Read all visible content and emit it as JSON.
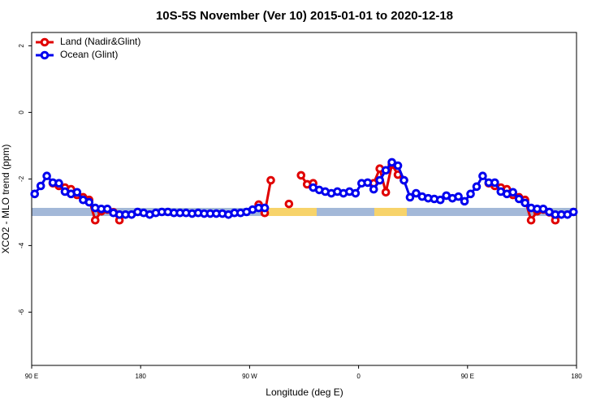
{
  "chart_data": {
    "type": "line",
    "title": "10S-5S November (Ver 10)   2015-01-01 to 2020-12-18",
    "x_label": "Longitude (deg E)",
    "y_label": "XCO2 - MLO trend (ppm)",
    "xlim": [
      90,
      540
    ],
    "xticks": [
      {
        "value": 90,
        "label": "90 E"
      },
      180,
      {
        "value": 270,
        "label": "90 W"
      },
      {
        "value": 360,
        "label": "0"
      },
      {
        "value": 450,
        "label": "90 E"
      },
      {
        "value": 540,
        "label": "180"
      }
    ],
    "ylim": [
      -7.6,
      2.4
    ],
    "yticks": [
      2,
      0,
      -2,
      -4,
      -6
    ],
    "legend": "top-left",
    "x": [
      92.5,
      97.5,
      102.5,
      107.5,
      112.5,
      117.5,
      122.5,
      127.5,
      132.5,
      137.5,
      142.5,
      147.5,
      152.5,
      157.5,
      162.5,
      167.5,
      172.5,
      177.5,
      182.5,
      187.5,
      192.5,
      197.5,
      202.5,
      207.5,
      212.5,
      217.5,
      222.5,
      227.5,
      232.5,
      237.5,
      242.5,
      247.5,
      252.5,
      257.5,
      262.5,
      267.5,
      272.5,
      277.5,
      282.5,
      287.5,
      292.5,
      297.5,
      302.5,
      307.5,
      312.5,
      317.5,
      322.5,
      327.5,
      332.5,
      337.5,
      342.5,
      347.5,
      352.5,
      357.5,
      362.5,
      367.5,
      372.5,
      377.5,
      382.5,
      387.5,
      392.5,
      397.5,
      402.5,
      407.5,
      412.5,
      417.5,
      422.5,
      427.5,
      432.5,
      437.5,
      442.5,
      447.5,
      452.5,
      457.5,
      462.5,
      467.5,
      472.5,
      477.5,
      482.5,
      487.5,
      492.5,
      497.5,
      502.5,
      507.5,
      512.5,
      517.5,
      522.5,
      527.5,
      532.5,
      537.5
    ],
    "series": [
      {
        "name": "Land (Nadir&Glint)",
        "color": "#e00000",
        "values": [
          null,
          null,
          null,
          -2.13,
          -2.21,
          -2.26,
          -2.31,
          -2.48,
          -2.55,
          -2.63,
          -3.24,
          -2.97,
          -2.92,
          -3.0,
          -3.24,
          null,
          null,
          null,
          null,
          null,
          null,
          null,
          null,
          null,
          null,
          null,
          null,
          null,
          null,
          null,
          null,
          null,
          null,
          null,
          null,
          null,
          null,
          -2.77,
          -3.02,
          -2.04,
          null,
          null,
          -2.75,
          null,
          -1.89,
          -2.16,
          -2.13,
          null,
          null,
          null,
          null,
          null,
          null,
          null,
          null,
          null,
          -2.13,
          -1.69,
          -2.4,
          -1.57,
          -1.87,
          -2.04,
          null,
          null,
          null,
          null,
          null,
          null,
          null,
          null,
          null,
          null,
          null,
          null,
          null,
          -2.13,
          -2.21,
          -2.26,
          -2.31,
          -2.48,
          -2.55,
          -2.63,
          -3.24,
          -2.97,
          -2.92,
          -3.0,
          -3.24,
          null,
          null,
          null
        ]
      },
      {
        "name": "Ocean (Glint)",
        "color": "#0000ee",
        "values": [
          -2.45,
          -2.21,
          -1.91,
          -2.11,
          -2.13,
          -2.38,
          -2.45,
          -2.4,
          -2.63,
          -2.7,
          -2.87,
          -2.9,
          -2.9,
          -3.02,
          -3.07,
          -3.07,
          -3.07,
          -2.99,
          -3.02,
          -3.07,
          -3.02,
          -2.99,
          -2.99,
          -3.02,
          -3.02,
          -3.02,
          -3.04,
          -3.02,
          -3.04,
          -3.04,
          -3.04,
          -3.04,
          -3.07,
          -3.02,
          -3.02,
          -2.99,
          -2.92,
          -2.87,
          -2.87,
          null,
          null,
          null,
          null,
          null,
          null,
          null,
          -2.26,
          -2.33,
          -2.38,
          -2.43,
          -2.38,
          -2.43,
          -2.38,
          -2.43,
          -2.13,
          -2.11,
          -2.31,
          -2.04,
          -1.74,
          -1.5,
          -1.6,
          -2.04,
          -2.55,
          -2.43,
          -2.53,
          -2.58,
          -2.6,
          -2.63,
          -2.5,
          -2.58,
          -2.53,
          -2.67,
          -2.45,
          -2.23,
          -1.91,
          -2.11,
          -2.11,
          -2.38,
          -2.45,
          -2.4,
          -2.6,
          -2.72,
          -2.87,
          -2.9,
          -2.9,
          -2.99,
          -3.07,
          -3.07,
          -3.07,
          -2.99
        ]
      }
    ]
  }
}
